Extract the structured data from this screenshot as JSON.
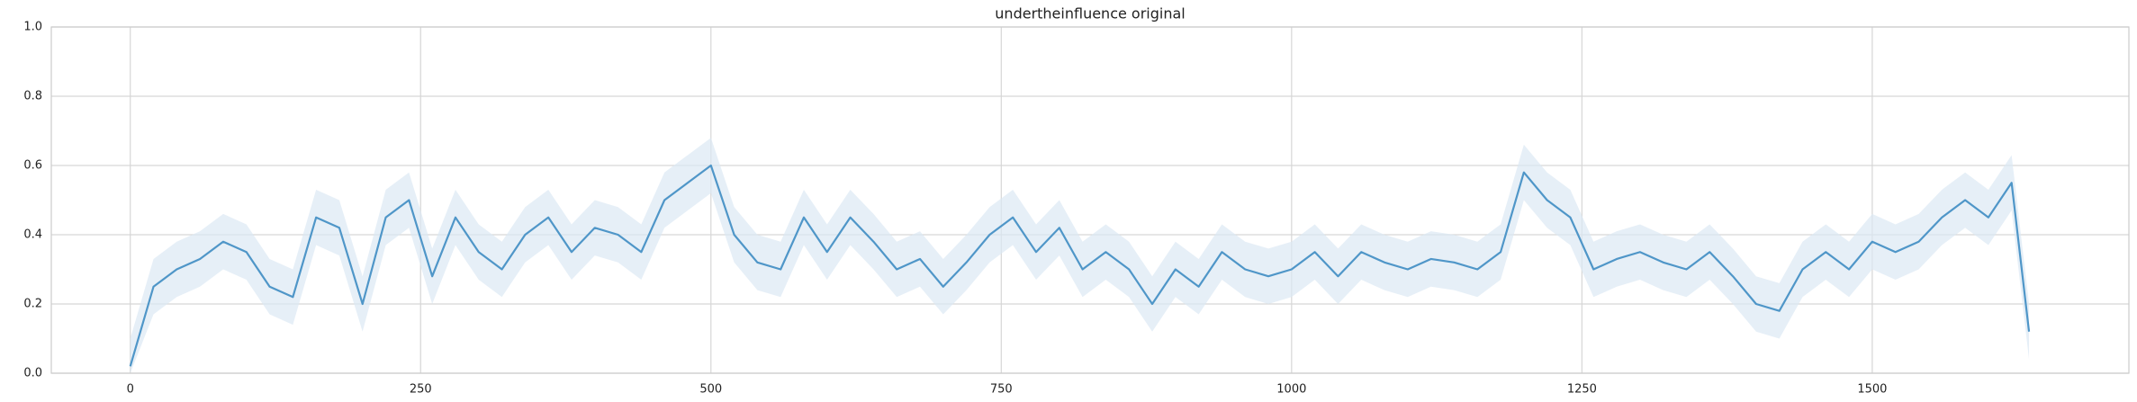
{
  "chart_data": {
    "type": "line",
    "title": "undertheinfluence original",
    "x": [
      0,
      20,
      40,
      60,
      80,
      100,
      120,
      140,
      160,
      180,
      200,
      220,
      240,
      260,
      280,
      300,
      320,
      340,
      360,
      380,
      400,
      420,
      440,
      460,
      480,
      500,
      520,
      540,
      560,
      580,
      600,
      620,
      640,
      660,
      680,
      700,
      720,
      740,
      760,
      780,
      800,
      820,
      840,
      860,
      880,
      900,
      920,
      940,
      960,
      980,
      1000,
      1020,
      1040,
      1060,
      1080,
      1100,
      1120,
      1140,
      1160,
      1180,
      1200,
      1220,
      1240,
      1260,
      1280,
      1300,
      1320,
      1340,
      1360,
      1380,
      1400,
      1420,
      1440,
      1460,
      1480,
      1500,
      1520,
      1540,
      1560,
      1580,
      1600,
      1620,
      1635
    ],
    "series": [
      {
        "color": "#4f96c8",
        "values": [
          0.02,
          0.25,
          0.3,
          0.33,
          0.38,
          0.35,
          0.25,
          0.22,
          0.45,
          0.42,
          0.2,
          0.45,
          0.5,
          0.28,
          0.45,
          0.35,
          0.3,
          0.4,
          0.45,
          0.35,
          0.42,
          0.4,
          0.35,
          0.5,
          0.55,
          0.6,
          0.4,
          0.32,
          0.3,
          0.45,
          0.35,
          0.45,
          0.38,
          0.3,
          0.33,
          0.25,
          0.32,
          0.4,
          0.45,
          0.35,
          0.42,
          0.3,
          0.35,
          0.3,
          0.2,
          0.3,
          0.25,
          0.35,
          0.3,
          0.28,
          0.3,
          0.35,
          0.28,
          0.35,
          0.32,
          0.3,
          0.33,
          0.32,
          0.3,
          0.35,
          0.58,
          0.5,
          0.45,
          0.3,
          0.33,
          0.35,
          0.32,
          0.3,
          0.35,
          0.28,
          0.2,
          0.18,
          0.3,
          0.35,
          0.3,
          0.38,
          0.35,
          0.38,
          0.45,
          0.5,
          0.45,
          0.55,
          0.12
        ],
        "lower": [
          0,
          0.17,
          0.22,
          0.25,
          0.3,
          0.27,
          0.17,
          0.14,
          0.37,
          0.34,
          0.12,
          0.37,
          0.42,
          0.2,
          0.37,
          0.27,
          0.22,
          0.32,
          0.37,
          0.27,
          0.34,
          0.32,
          0.27,
          0.42,
          0.47,
          0.52,
          0.32,
          0.24,
          0.22,
          0.37,
          0.27,
          0.37,
          0.3,
          0.22,
          0.25,
          0.17,
          0.24,
          0.32,
          0.37,
          0.27,
          0.34,
          0.22,
          0.27,
          0.22,
          0.12,
          0.22,
          0.17,
          0.27,
          0.22,
          0.2,
          0.22,
          0.27,
          0.2,
          0.27,
          0.24,
          0.22,
          0.25,
          0.24,
          0.22,
          0.27,
          0.5,
          0.42,
          0.37,
          0.22,
          0.25,
          0.27,
          0.24,
          0.22,
          0.27,
          0.2,
          0.12,
          0.1,
          0.22,
          0.27,
          0.22,
          0.3,
          0.27,
          0.3,
          0.37,
          0.42,
          0.37,
          0.47,
          0.04
        ],
        "upper": [
          0.1,
          0.33,
          0.38,
          0.41,
          0.46,
          0.43,
          0.33,
          0.3,
          0.53,
          0.5,
          0.28,
          0.53,
          0.58,
          0.36,
          0.53,
          0.43,
          0.38,
          0.48,
          0.53,
          0.43,
          0.5,
          0.48,
          0.43,
          0.58,
          0.63,
          0.68,
          0.48,
          0.4,
          0.38,
          0.53,
          0.43,
          0.53,
          0.46,
          0.38,
          0.41,
          0.33,
          0.4,
          0.48,
          0.53,
          0.43,
          0.5,
          0.38,
          0.43,
          0.38,
          0.28,
          0.38,
          0.33,
          0.43,
          0.38,
          0.36,
          0.38,
          0.43,
          0.36,
          0.43,
          0.4,
          0.38,
          0.41,
          0.4,
          0.38,
          0.43,
          0.66,
          0.58,
          0.53,
          0.38,
          0.41,
          0.43,
          0.4,
          0.38,
          0.43,
          0.36,
          0.28,
          0.26,
          0.38,
          0.43,
          0.38,
          0.46,
          0.43,
          0.46,
          0.53,
          0.58,
          0.53,
          0.63,
          0.2
        ]
      }
    ],
    "band_color": "#dbe8f4",
    "xlim": [
      -68,
      1721
    ],
    "ylim": [
      0,
      1
    ],
    "xticks": [
      0,
      250,
      500,
      750,
      1000,
      1250,
      1500
    ],
    "yticks": [
      {
        "value": 0,
        "label": "0.0"
      },
      0.2,
      0.4,
      0.6,
      0.8,
      {
        "value": 1,
        "label": "1.0"
      }
    ],
    "grid": true
  }
}
